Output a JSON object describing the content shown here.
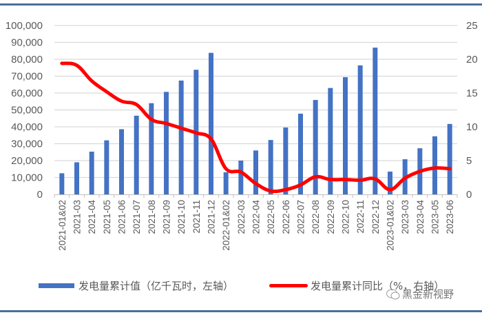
{
  "chart_data": {
    "type": "bar+line",
    "title": "",
    "categories": [
      "2021-01&02",
      "2021-03",
      "2021-04",
      "2021-05",
      "2021-06",
      "2021-07",
      "2021-08",
      "2021-09",
      "2021-10",
      "2021-11",
      "2021-12",
      "2022-01&02",
      "2022-03",
      "2022-04",
      "2022-05",
      "2022-06",
      "2022-07",
      "2022-08",
      "2022-09",
      "2022-10",
      "2022-11",
      "2022-12",
      "2023-01&02",
      "2023-03",
      "2023-04",
      "2023-05",
      "2023-06"
    ],
    "series": [
      {
        "name": "发电量累计值（亿千瓦时，左轴）",
        "type": "bar",
        "axis": "left",
        "color": "#4472c4",
        "values": [
          12500,
          19000,
          25300,
          32000,
          38600,
          46600,
          54000,
          60700,
          67400,
          73800,
          83800,
          13100,
          20000,
          26000,
          32200,
          39600,
          47800,
          55900,
          63000,
          69400,
          76400,
          86900,
          13500,
          20800,
          27300,
          34400,
          41700
        ]
      },
      {
        "name": "发电量累计同比（%，右轴）",
        "type": "line",
        "axis": "right",
        "color": "#ff0000",
        "values": [
          19.4,
          19.1,
          16.8,
          15.2,
          13.8,
          13.3,
          11.1,
          10.5,
          9.8,
          9.1,
          8.2,
          3.8,
          3.3,
          1.6,
          0.5,
          0.7,
          1.4,
          2.6,
          2.2,
          2.2,
          2.1,
          2.3,
          0.7,
          2.4,
          3.4,
          3.9,
          3.8
        ]
      }
    ],
    "left_axis": {
      "ticks": [
        "0",
        "10,000",
        "20,000",
        "30,000",
        "40,000",
        "50,000",
        "60,000",
        "70,000",
        "80,000",
        "90,000",
        "100,000"
      ],
      "ylim": [
        0,
        100000
      ]
    },
    "right_axis": {
      "ticks": [
        "0",
        "5",
        "10",
        "15",
        "20",
        "25"
      ],
      "ylim": [
        0,
        25
      ]
    },
    "grid": true,
    "legend_position": "bottom"
  },
  "legend": {
    "bar_label": "发电量累计值（亿千瓦时，左轴）",
    "line_label": "发电量累计同比（%，右轴）"
  },
  "watermark": {
    "text": "黑金新视野",
    "icon": "wechat-icon"
  }
}
